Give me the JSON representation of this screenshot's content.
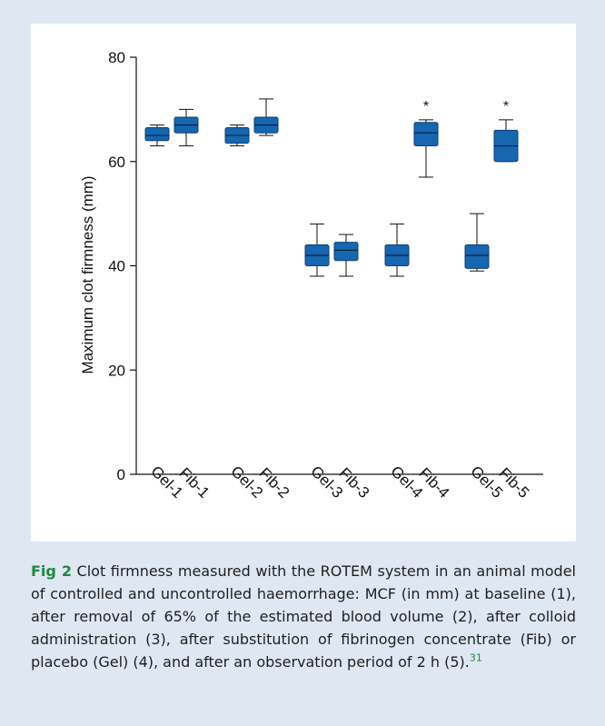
{
  "figure": {
    "label": "Fig 2",
    "caption": " Clot firmness measured with the ROTEM system in an animal model of controlled and uncontrolled haemorrhage: MCF (in mm) at baseline (1), after removal of 65% of the estimated blood volume (2), after colloid administration (3), after substitution of fibrinogen concentrate (Fib) or placebo (Gel) (4), and after an observation period of 2 h (5).",
    "ref": "31"
  },
  "colors": {
    "box_fill": "#1666b0",
    "box_stroke": "#0d3f73",
    "panel_bg": "#dfe7f3",
    "caption_accent": "#1d8a3a"
  },
  "chart_data": {
    "type": "boxplot",
    "title": "",
    "xlabel": "",
    "ylabel": "Maximum clot firmness (mm)",
    "ylim": [
      0,
      80
    ],
    "yticks": [
      0,
      20,
      40,
      60,
      80
    ],
    "grid": false,
    "groups": [
      {
        "labels": [
          "Gel-1",
          "Fib-1"
        ]
      },
      {
        "labels": [
          "Gel-2",
          "Fib-2"
        ]
      },
      {
        "labels": [
          "Gel-3",
          "Fib-3"
        ]
      },
      {
        "labels": [
          "Gel-4",
          "Fib-4"
        ]
      },
      {
        "labels": [
          "Gel-5",
          "Fib-5"
        ]
      }
    ],
    "boxes": [
      {
        "label": "Gel-1",
        "min": 63,
        "q1": 64,
        "median": 65,
        "q3": 66.5,
        "max": 67,
        "sig": ""
      },
      {
        "label": "Fib-1",
        "min": 63,
        "q1": 65.5,
        "median": 67,
        "q3": 68.5,
        "max": 70,
        "sig": ""
      },
      {
        "label": "Gel-2",
        "min": 63,
        "q1": 63.5,
        "median": 65,
        "q3": 66.5,
        "max": 67,
        "sig": ""
      },
      {
        "label": "Fib-2",
        "min": 65,
        "q1": 65.5,
        "median": 67,
        "q3": 68.5,
        "max": 72,
        "sig": ""
      },
      {
        "label": "Gel-3",
        "min": 38,
        "q1": 40,
        "median": 42,
        "q3": 44,
        "max": 48,
        "sig": ""
      },
      {
        "label": "Fib-3",
        "min": 38,
        "q1": 41,
        "median": 43,
        "q3": 44.5,
        "max": 46,
        "sig": ""
      },
      {
        "label": "Gel-4",
        "min": 38,
        "q1": 40,
        "median": 42,
        "q3": 44,
        "max": 48,
        "sig": ""
      },
      {
        "label": "Fib-4",
        "min": 57,
        "q1": 63,
        "median": 65.5,
        "q3": 67.5,
        "max": 68,
        "sig": "*"
      },
      {
        "label": "Gel-5",
        "min": 39,
        "q1": 39.5,
        "median": 42,
        "q3": 44,
        "max": 50,
        "sig": ""
      },
      {
        "label": "Fib-5",
        "min": 60,
        "q1": 60,
        "median": 63,
        "q3": 66,
        "max": 68,
        "sig": "*"
      }
    ]
  }
}
